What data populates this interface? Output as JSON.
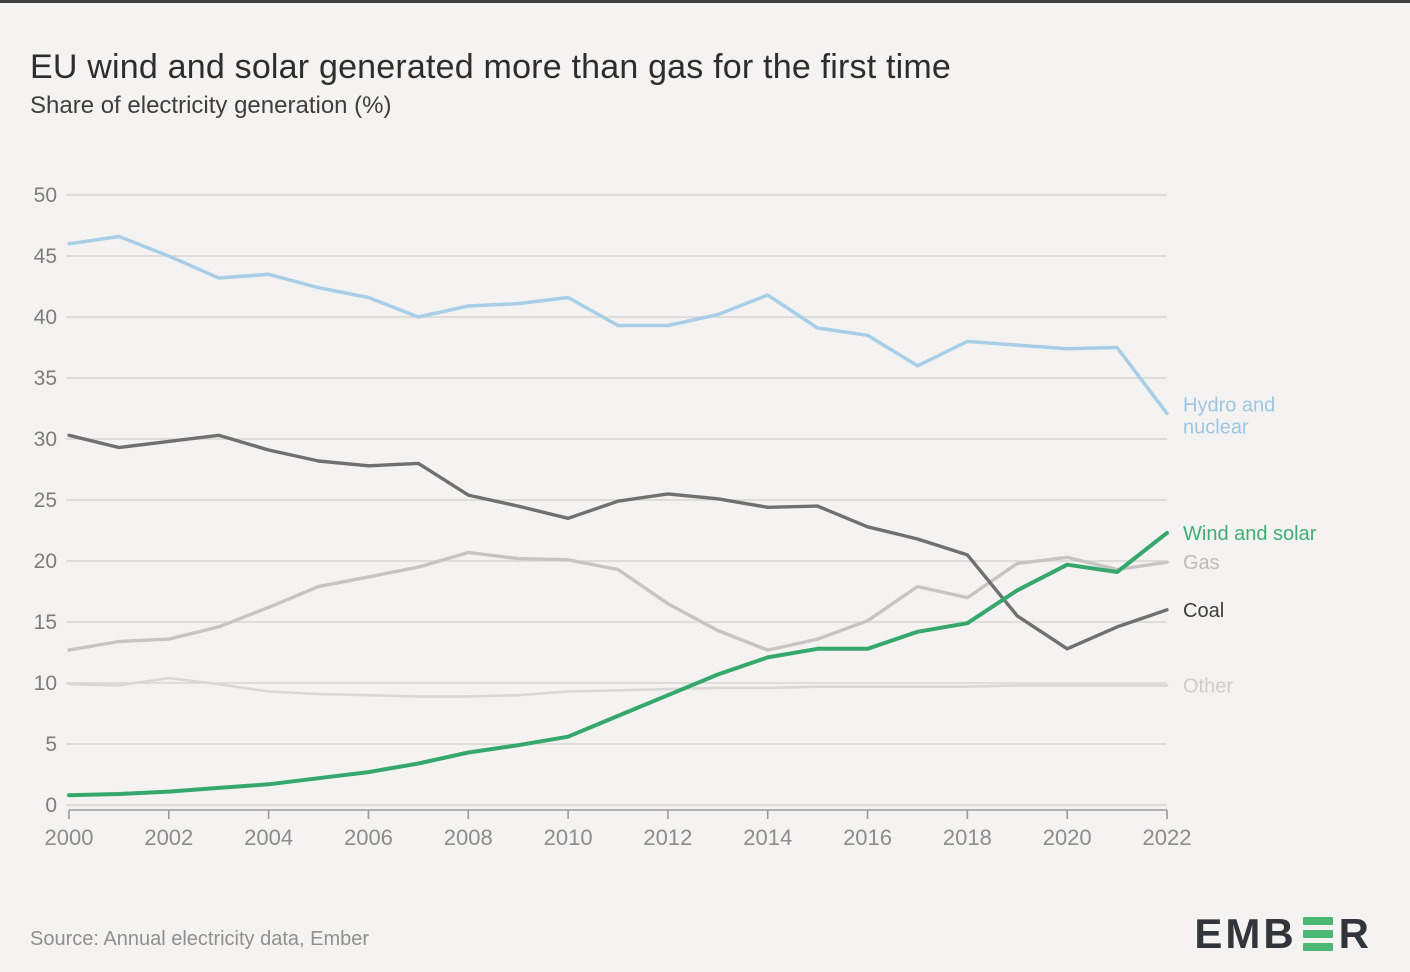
{
  "header": {
    "title": "EU wind and solar generated more than gas for the first time",
    "subtitle": "Share of electricity generation (%)"
  },
  "footer": {
    "source": "Source: Annual electricity data, Ember",
    "logo": {
      "prefix": "EMB",
      "suffix": "R",
      "bar_glyph": "triple-green-bars"
    }
  },
  "colors": {
    "background": "#f4f3f1",
    "gridline": "#d8d6d2",
    "axis": "#9a9a9a",
    "y_tick_text": "#7d7d7d",
    "x_tick_text": "#8c8c8c",
    "logo_text": "#32363b",
    "logo_bars": "#4cb874"
  },
  "chart_data": {
    "type": "line",
    "title": "EU wind and solar generated more than gas for the first time",
    "subtitle": "Share of electricity generation (%)",
    "xlabel": "",
    "ylabel": "Share of electricity generation (%)",
    "xlim": [
      2000,
      2022
    ],
    "ylim": [
      0,
      50
    ],
    "grid": "horizontal",
    "legend_position": "right-of-line-ends",
    "x": [
      2000,
      2001,
      2002,
      2003,
      2004,
      2005,
      2006,
      2007,
      2008,
      2009,
      2010,
      2011,
      2012,
      2013,
      2014,
      2015,
      2016,
      2017,
      2018,
      2019,
      2020,
      2021,
      2022
    ],
    "x_tick_labels": [
      "2000",
      "2002",
      "2004",
      "2006",
      "2008",
      "2010",
      "2012",
      "2014",
      "2016",
      "2018",
      "2020",
      "2022"
    ],
    "y_ticks": [
      0,
      5,
      10,
      15,
      20,
      25,
      30,
      35,
      40,
      45,
      50
    ],
    "series": [
      {
        "name": "Other",
        "label_lines": [
          "Other"
        ],
        "color": "#d9d8d6",
        "label_color": "#cecdcb",
        "width": 2.6,
        "values": [
          9.9,
          9.8,
          10.4,
          9.9,
          9.3,
          9.1,
          9.0,
          8.9,
          8.9,
          9.0,
          9.3,
          9.4,
          9.5,
          9.6,
          9.6,
          9.7,
          9.7,
          9.7,
          9.7,
          9.8,
          9.8,
          9.8,
          9.8
        ]
      },
      {
        "name": "Gas",
        "label_lines": [
          "Gas"
        ],
        "color": "#c6c5c3",
        "label_color": "#bebdbb",
        "width": 3.4,
        "values": [
          12.7,
          13.4,
          13.6,
          14.6,
          16.2,
          17.9,
          18.7,
          19.5,
          20.7,
          20.2,
          20.1,
          19.3,
          16.5,
          14.3,
          12.7,
          13.6,
          15.1,
          17.9,
          17.0,
          19.8,
          20.3,
          19.3,
          19.9
        ]
      },
      {
        "name": "Coal",
        "label_lines": [
          "Coal"
        ],
        "color": "#707070",
        "label_color": "#3d3d3d",
        "width": 3.4,
        "values": [
          30.3,
          29.3,
          29.8,
          30.3,
          29.1,
          28.2,
          27.8,
          28.0,
          25.4,
          24.5,
          23.5,
          24.9,
          25.5,
          25.1,
          24.4,
          24.5,
          22.8,
          21.8,
          20.5,
          15.5,
          12.8,
          14.6,
          16.0
        ]
      },
      {
        "name": "Hydro and nuclear",
        "label_lines": [
          "Hydro and",
          "nuclear"
        ],
        "color": "#a9cee7",
        "label_color": "#9cc6e2",
        "width": 3.5,
        "values": [
          46.0,
          46.6,
          45.0,
          43.2,
          43.5,
          42.4,
          41.6,
          40.0,
          40.9,
          41.1,
          41.6,
          39.3,
          39.3,
          40.2,
          41.8,
          39.1,
          38.5,
          36.0,
          38.0,
          37.7,
          37.4,
          37.5,
          32.1
        ]
      },
      {
        "name": "Wind and solar",
        "label_lines": [
          "Wind and solar"
        ],
        "color": "#36a86d",
        "label_color": "#3fae74",
        "width": 4,
        "values": [
          0.8,
          0.9,
          1.1,
          1.4,
          1.7,
          2.2,
          2.7,
          3.4,
          4.3,
          4.9,
          5.6,
          7.3,
          9.0,
          10.7,
          12.1,
          12.8,
          12.8,
          14.2,
          14.9,
          17.6,
          19.7,
          19.1,
          22.3
        ]
      }
    ]
  }
}
